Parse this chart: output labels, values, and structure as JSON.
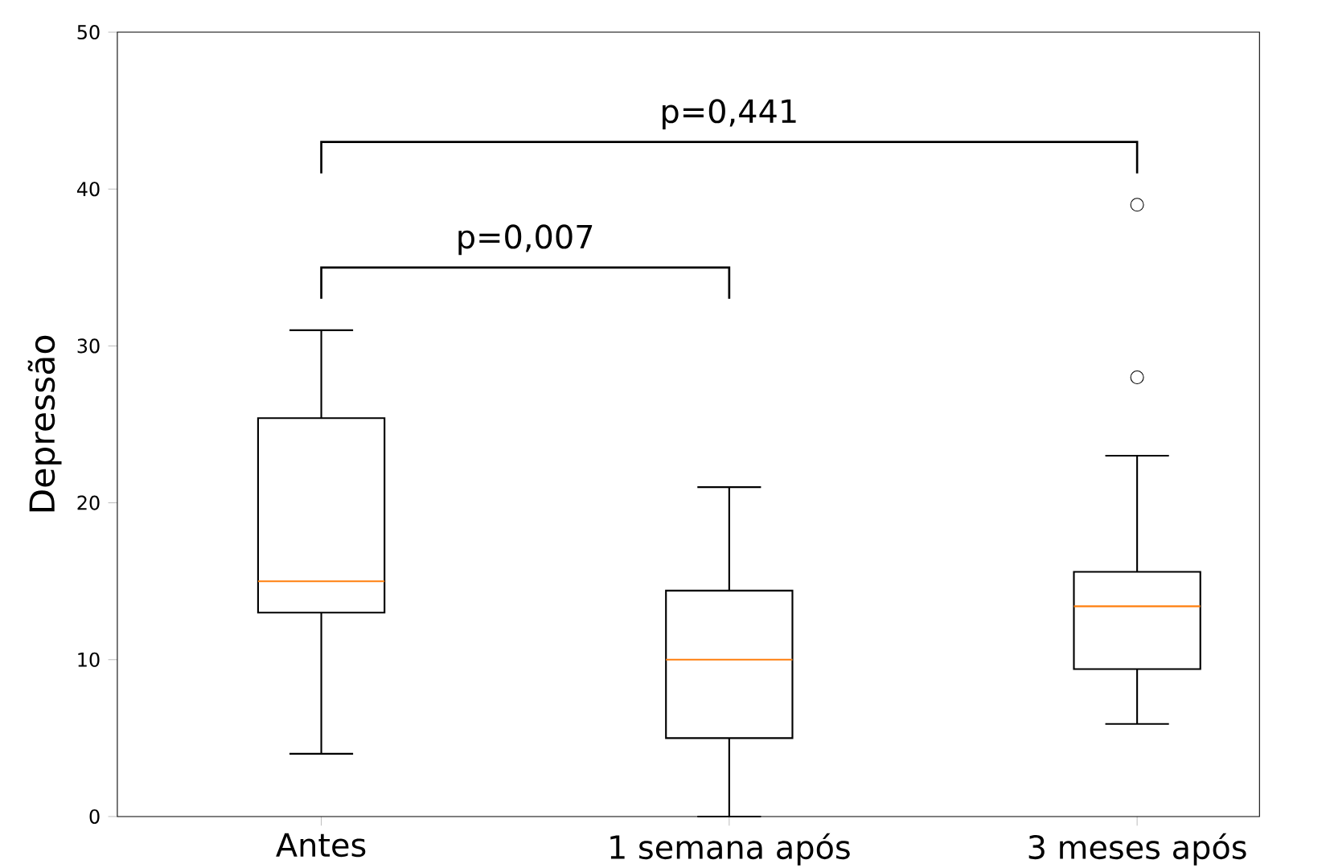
{
  "chart_data": {
    "type": "box",
    "ylabel": "Depressão",
    "categories": [
      "Antes",
      "1 semana após",
      "3 meses após"
    ],
    "boxes": [
      {
        "low": 4,
        "q1": 13,
        "median": 15,
        "q3": 25.4,
        "high": 31
      },
      {
        "low": 0,
        "q1": 5,
        "median": 10,
        "q3": 14.4,
        "high": 21
      },
      {
        "low": 5.9,
        "q1": 9.4,
        "median": 13.4,
        "q3": 15.6,
        "high": 23,
        "outliers": [
          39,
          28
        ]
      }
    ],
    "color": "#000000",
    "ylim": [
      0,
      50
    ],
    "yticks": [
      0,
      10,
      20,
      30,
      40,
      50
    ],
    "grid": false,
    "annotations": [
      "p=0,441",
      "p=0,007"
    ]
  }
}
